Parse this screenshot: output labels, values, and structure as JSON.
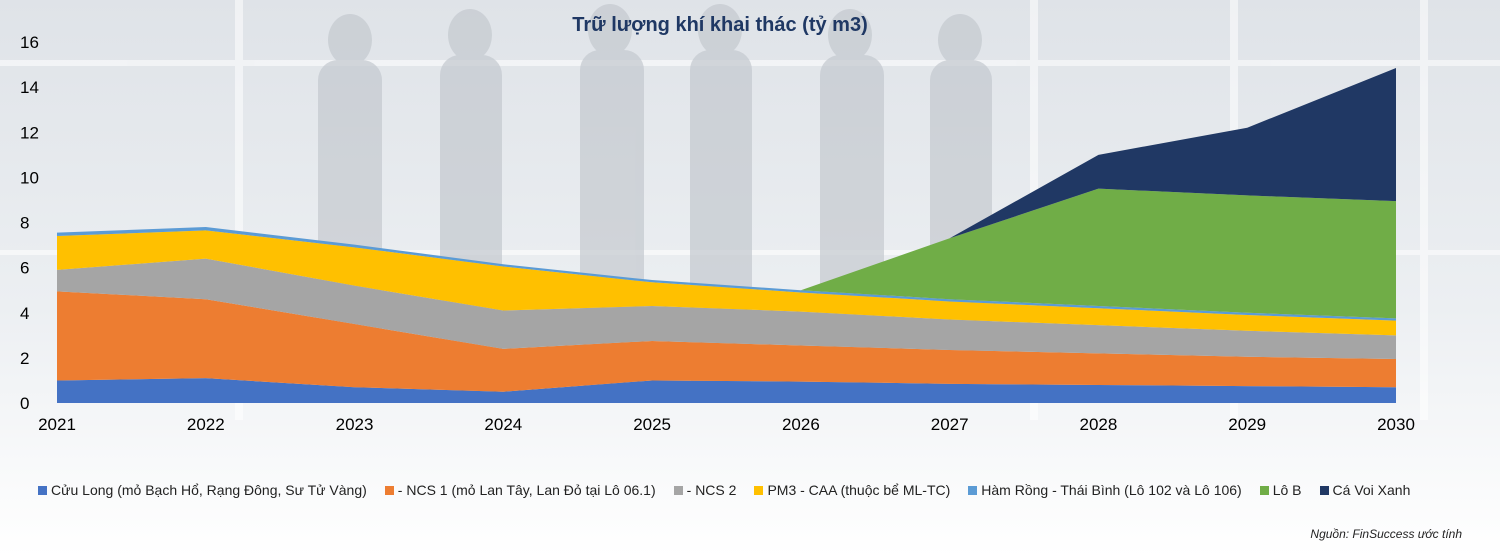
{
  "chart_data": {
    "type": "area",
    "stacked": true,
    "title": "Trữ lượng khí khai thác (tỷ m3)",
    "xlabel": "",
    "ylabel": "",
    "x": [
      "2021",
      "2022",
      "2023",
      "2024",
      "2025",
      "2026",
      "2027",
      "2028",
      "2029",
      "2030"
    ],
    "ylim": [
      0,
      16
    ],
    "yticks": [
      "0",
      "2",
      "4",
      "6",
      "8",
      "10",
      "12",
      "14",
      "16"
    ],
    "grid": false,
    "legend_position": "bottom",
    "series": [
      {
        "name": "Cửu Long (mỏ Bạch Hổ, Rạng Đông, Sư Tử Vàng)",
        "color": "#4472c4",
        "values": [
          1.0,
          1.1,
          0.7,
          0.5,
          1.0,
          0.95,
          0.85,
          0.8,
          0.75,
          0.7
        ]
      },
      {
        "name": "- NCS 1 (mỏ Lan Tây, Lan Đỏ tại Lô 06.1)",
        "color": "#ed7d31",
        "values": [
          3.95,
          3.5,
          2.8,
          1.9,
          1.75,
          1.6,
          1.5,
          1.4,
          1.3,
          1.25
        ]
      },
      {
        "name": "- NCS 2",
        "color": "#a5a5a5",
        "values": [
          0.95,
          1.8,
          1.7,
          1.7,
          1.55,
          1.5,
          1.35,
          1.25,
          1.15,
          1.05
        ]
      },
      {
        "name": "PM3 - CAA (thuộc bể ML-TC)",
        "color": "#ffc000",
        "values": [
          1.5,
          1.25,
          1.7,
          1.95,
          1.05,
          0.85,
          0.8,
          0.75,
          0.7,
          0.65
        ]
      },
      {
        "name": "Hàm Rồng - Thái Bình (Lô 102 và Lô 106)",
        "color": "#5b9bd5",
        "values": [
          0.15,
          0.15,
          0.12,
          0.1,
          0.1,
          0.1,
          0.1,
          0.1,
          0.1,
          0.1
        ]
      },
      {
        "name": "Lô B",
        "color": "#70ad47",
        "values": [
          0,
          0,
          0,
          0,
          0,
          0,
          2.7,
          5.2,
          5.2,
          5.2
        ]
      },
      {
        "name": "Cá Voi Xanh",
        "color": "#203864",
        "values": [
          0,
          0,
          0,
          0,
          0,
          0,
          0,
          1.5,
          3.0,
          5.9
        ]
      }
    ]
  },
  "source_note": "Nguồn: FinSuccess ước tính"
}
